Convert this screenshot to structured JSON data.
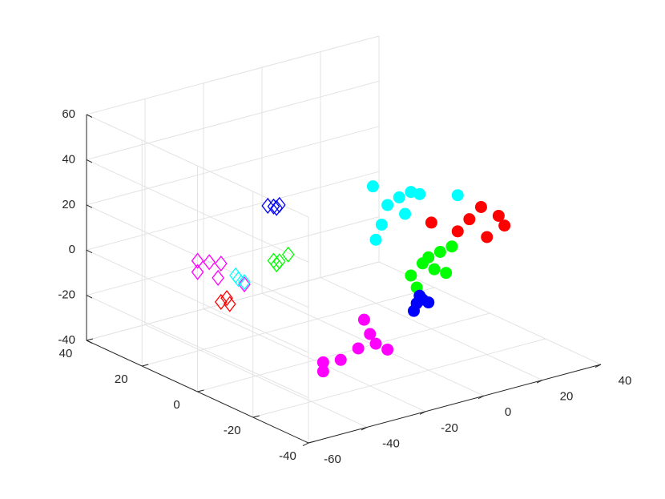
{
  "chart_data": {
    "type": "scatter3d",
    "xlim": [
      -60,
      40
    ],
    "xticks": [
      -60,
      -40,
      -20,
      0,
      20,
      40
    ],
    "ylim": [
      -40,
      40
    ],
    "yticks": [
      -40,
      -20,
      0,
      20,
      40
    ],
    "zlim": [
      -40,
      60
    ],
    "zticks": [
      -40,
      -20,
      0,
      20,
      40,
      60
    ],
    "grid": true,
    "series": [
      {
        "marker": "circle",
        "color": "#00ffff",
        "x": [
          -19,
          -14,
          -10,
          -6,
          -3,
          -16,
          -8,
          10,
          -18
        ],
        "y": [
          -20,
          -20,
          -20,
          -20,
          -20,
          -20,
          -20,
          -20,
          -20
        ],
        "z": [
          48,
          38,
          40,
          41,
          39,
          30,
          32,
          34,
          24
        ]
      },
      {
        "marker": "circle",
        "color": "#ff0000",
        "x": [
          18,
          14,
          24,
          26,
          20,
          10,
          1
        ],
        "y": [
          -20,
          -20,
          -20,
          -20,
          -20,
          -20,
          -20
        ],
        "z": [
          26,
          22,
          20,
          15,
          12,
          18,
          25
        ]
      },
      {
        "marker": "circle",
        "color": "#00ff00",
        "x": [
          0,
          4,
          8,
          -2,
          2,
          -6,
          6,
          -4
        ],
        "y": [
          -20,
          -20,
          -20,
          -20,
          -20,
          -20,
          -20,
          -20
        ],
        "z": [
          10,
          11,
          12,
          8,
          4,
          4,
          1,
          -2
        ]
      },
      {
        "marker": "circle",
        "color": "#0000ff",
        "x": [
          -4,
          -2,
          -5,
          0,
          -3
        ],
        "y": [
          -20,
          -20,
          -20,
          -20,
          -20
        ],
        "z": [
          -9,
          -8,
          -12,
          -10,
          -6
        ]
      },
      {
        "marker": "circle",
        "color": "#ff00ff",
        "x": [
          -36,
          -30,
          -24,
          -18,
          -14,
          -20,
          -22,
          -36
        ],
        "y": [
          -20,
          -20,
          -20,
          -20,
          -20,
          -20,
          -20,
          -20
        ],
        "z": [
          -24,
          -25,
          -22,
          -22,
          -26,
          -17,
          -10,
          -28
        ]
      },
      {
        "marker": "diamond",
        "color": "#0000ff",
        "x": [
          -17,
          -15,
          -13,
          -14
        ],
        "y": [
          20,
          20,
          20,
          20
        ],
        "z": [
          16,
          15,
          15,
          14
        ]
      },
      {
        "marker": "diamond",
        "color": "#00ff00",
        "x": [
          -15,
          -13,
          -10,
          -14
        ],
        "y": [
          20,
          20,
          20,
          20
        ],
        "z": [
          -9,
          -10,
          -8,
          -11
        ]
      },
      {
        "marker": "diamond",
        "color": "#ff00ff",
        "x": [
          -41,
          -41,
          -37,
          -33,
          -34,
          -25
        ],
        "y": [
          20,
          20,
          20,
          20,
          20,
          20
        ],
        "z": [
          0,
          -5,
          -2,
          -4,
          -10,
          -16
        ]
      },
      {
        "marker": "diamond",
        "color": "#00ffff",
        "x": [
          -28,
          -27,
          -25
        ],
        "y": [
          20,
          20,
          20
        ],
        "z": [
          -11,
          -13,
          -15
        ]
      },
      {
        "marker": "diamond",
        "color": "#ff0000",
        "x": [
          -33,
          -31,
          -30
        ],
        "y": [
          20,
          20,
          20
        ],
        "z": [
          -21,
          -20,
          -23
        ]
      }
    ]
  }
}
